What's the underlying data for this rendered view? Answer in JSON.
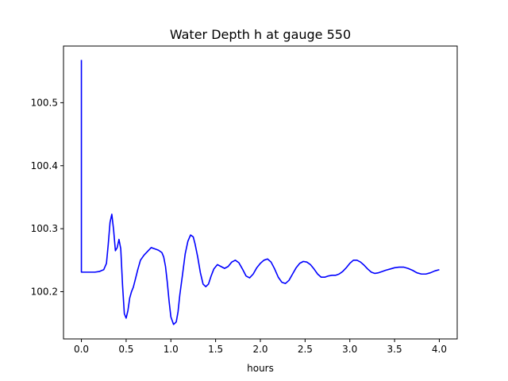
{
  "chart_data": {
    "type": "line",
    "title": "Water Depth h at gauge 550",
    "xlabel": "hours",
    "ylabel": "",
    "xlim": [
      -0.2,
      4.2
    ],
    "ylim": [
      100.125,
      100.59
    ],
    "xticks": [
      0.0,
      0.5,
      1.0,
      1.5,
      2.0,
      2.5,
      3.0,
      3.5,
      4.0
    ],
    "xtick_labels": [
      "0.0",
      "0.5",
      "1.0",
      "1.5",
      "2.0",
      "2.5",
      "3.0",
      "3.5",
      "4.0"
    ],
    "yticks": [
      100.2,
      100.3,
      100.4,
      100.5
    ],
    "ytick_labels": [
      "100.2",
      "100.3",
      "100.4",
      "100.5"
    ],
    "grid": false,
    "legend": "none",
    "series": [
      {
        "color": "#0000ff",
        "x": [
          0.0,
          0.0,
          0.001,
          0.05,
          0.1,
          0.15,
          0.2,
          0.25,
          0.28,
          0.3,
          0.32,
          0.34,
          0.36,
          0.38,
          0.4,
          0.42,
          0.44,
          0.46,
          0.48,
          0.5,
          0.52,
          0.54,
          0.56,
          0.58,
          0.6,
          0.63,
          0.66,
          0.7,
          0.74,
          0.78,
          0.82,
          0.86,
          0.9,
          0.92,
          0.94,
          0.96,
          0.98,
          1.0,
          1.03,
          1.06,
          1.08,
          1.1,
          1.13,
          1.16,
          1.19,
          1.22,
          1.25,
          1.27,
          1.3,
          1.33,
          1.36,
          1.39,
          1.42,
          1.45,
          1.48,
          1.52,
          1.56,
          1.6,
          1.64,
          1.68,
          1.72,
          1.76,
          1.8,
          1.84,
          1.88,
          1.92,
          1.96,
          2.0,
          2.04,
          2.08,
          2.12,
          2.16,
          2.2,
          2.24,
          2.28,
          2.32,
          2.36,
          2.4,
          2.44,
          2.48,
          2.52,
          2.56,
          2.6,
          2.64,
          2.68,
          2.72,
          2.76,
          2.8,
          2.84,
          2.88,
          2.92,
          2.96,
          3.0,
          3.04,
          3.08,
          3.12,
          3.16,
          3.2,
          3.24,
          3.28,
          3.32,
          3.36,
          3.4,
          3.45,
          3.5,
          3.55,
          3.6,
          3.65,
          3.7,
          3.75,
          3.8,
          3.85,
          3.9,
          3.95,
          4.0
        ],
        "y": [
          100.568,
          100.231,
          100.231,
          100.231,
          100.231,
          100.231,
          100.232,
          100.235,
          100.245,
          100.275,
          100.31,
          100.323,
          100.298,
          100.265,
          100.27,
          100.283,
          100.268,
          100.21,
          100.165,
          100.158,
          100.17,
          100.19,
          100.2,
          100.207,
          100.218,
          100.235,
          100.25,
          100.258,
          100.264,
          100.27,
          100.268,
          100.266,
          100.262,
          100.255,
          100.24,
          100.215,
          100.185,
          100.16,
          100.148,
          100.152,
          100.168,
          100.195,
          100.227,
          100.26,
          100.28,
          100.29,
          100.287,
          100.276,
          100.255,
          100.23,
          100.212,
          100.208,
          100.212,
          100.225,
          100.236,
          100.243,
          100.24,
          100.237,
          100.24,
          100.247,
          100.25,
          100.246,
          100.236,
          100.225,
          100.222,
          100.228,
          100.238,
          100.245,
          100.25,
          100.252,
          100.247,
          100.236,
          100.223,
          100.215,
          100.213,
          100.218,
          100.228,
          100.238,
          100.245,
          100.248,
          100.247,
          100.243,
          100.236,
          100.228,
          100.223,
          100.223,
          100.225,
          100.226,
          100.226,
          100.228,
          100.232,
          100.238,
          100.245,
          100.25,
          100.25,
          100.247,
          100.242,
          100.236,
          100.231,
          100.229,
          100.23,
          100.232,
          100.234,
          100.236,
          100.238,
          100.239,
          100.239,
          100.237,
          100.234,
          100.23,
          100.228,
          100.228,
          100.23,
          100.233,
          100.235
        ]
      }
    ]
  }
}
